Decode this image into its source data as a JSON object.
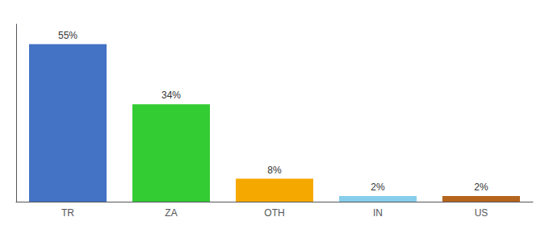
{
  "chart_data": {
    "type": "bar",
    "categories": [
      "TR",
      "ZA",
      "OTH",
      "IN",
      "US"
    ],
    "values": [
      55,
      34,
      8,
      2,
      2
    ],
    "value_labels": [
      "55%",
      "34%",
      "8%",
      "2%",
      "2%"
    ],
    "colors": [
      "#4472c4",
      "#33cc33",
      "#f5a800",
      "#87ceeb",
      "#b5651d"
    ],
    "ylim": [
      0,
      62
    ],
    "data_labels": true,
    "tick_labels": "x",
    "grid": false
  }
}
